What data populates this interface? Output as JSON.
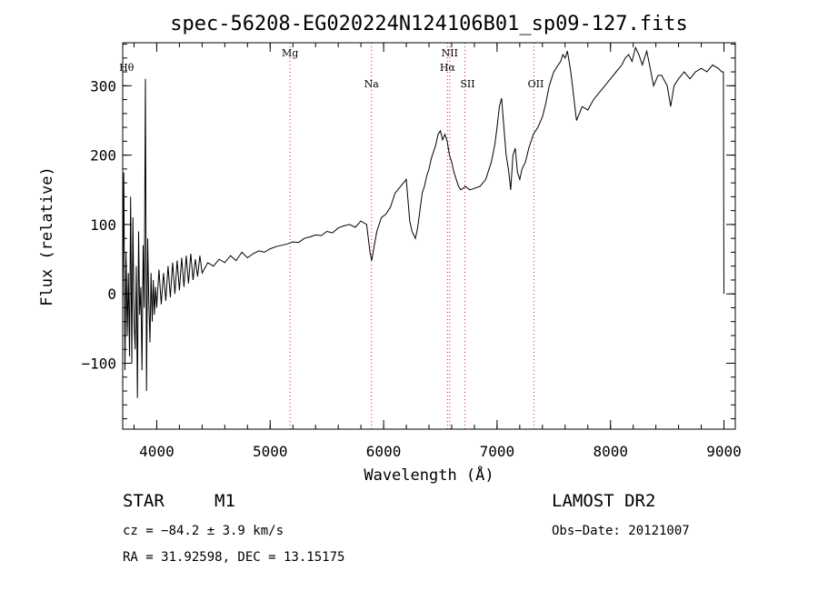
{
  "chart_data": {
    "type": "line",
    "title": "spec-56208-EG020224N124106B01_sp09-127.fits",
    "xlabel": "Wavelength (Å)",
    "ylabel": "Flux (relative)",
    "xlim": [
      3700,
      9100
    ],
    "ylim": [
      -195,
      362
    ],
    "xticks": [
      4000,
      5000,
      6000,
      7000,
      8000,
      9000
    ],
    "yticks": [
      -100,
      0,
      100,
      200,
      300
    ],
    "grid": false,
    "series": [
      {
        "x": [
          3700,
          3710,
          3720,
          3730,
          3740,
          3750,
          3760,
          3770,
          3780,
          3790,
          3800,
          3810,
          3820,
          3830,
          3840,
          3850,
          3860,
          3870,
          3880,
          3890,
          3900,
          3910,
          3920,
          3930,
          3940,
          3950,
          3960,
          3970,
          3980,
          3990,
          4000,
          4020,
          4040,
          4060,
          4080,
          4100,
          4120,
          4140,
          4160,
          4180,
          4200,
          4220,
          4240,
          4260,
          4280,
          4300,
          4320,
          4340,
          4360,
          4380,
          4400,
          4450,
          4500,
          4550,
          4600,
          4650,
          4700,
          4750,
          4800,
          4850,
          4900,
          4950,
          5000,
          5050,
          5100,
          5150,
          5200,
          5250,
          5300,
          5350,
          5400,
          5450,
          5500,
          5550,
          5600,
          5650,
          5700,
          5750,
          5800,
          5850,
          5880,
          5895,
          5910,
          5940,
          5980,
          6020,
          6060,
          6100,
          6150,
          6200,
          6230,
          6250,
          6280,
          6300,
          6320,
          6340,
          6360,
          6380,
          6400,
          6420,
          6440,
          6460,
          6480,
          6500,
          6520,
          6540,
          6560,
          6580,
          6600,
          6620,
          6640,
          6660,
          6680,
          6700,
          6720,
          6760,
          6800,
          6850,
          6900,
          6920,
          6950,
          6980,
          7000,
          7020,
          7040,
          7060,
          7080,
          7100,
          7120,
          7140,
          7160,
          7180,
          7200,
          7220,
          7250,
          7280,
          7320,
          7360,
          7400,
          7430,
          7460,
          7500,
          7540,
          7560,
          7580,
          7600,
          7620,
          7650,
          7700,
          7750,
          7800,
          7850,
          7900,
          7950,
          8000,
          8050,
          8100,
          8130,
          8160,
          8190,
          8220,
          8250,
          8280,
          8300,
          8320,
          8350,
          8380,
          8420,
          8450,
          8500,
          8530,
          8560,
          8600,
          8650,
          8700,
          8750,
          8800,
          8850,
          8900,
          8950,
          8980,
          8995,
          9000
        ],
        "y": [
          -20,
          175,
          -110,
          60,
          -60,
          30,
          -90,
          140,
          -100,
          110,
          -40,
          -80,
          40,
          -150,
          90,
          -30,
          10,
          -110,
          70,
          -20,
          310,
          -140,
          80,
          -10,
          -70,
          30,
          -40,
          20,
          -30,
          10,
          -20,
          35,
          -15,
          30,
          -10,
          40,
          -5,
          45,
          0,
          48,
          5,
          52,
          10,
          55,
          15,
          58,
          20,
          50,
          25,
          55,
          30,
          45,
          40,
          50,
          45,
          55,
          48,
          60,
          52,
          58,
          62,
          60,
          65,
          68,
          70,
          72,
          75,
          74,
          80,
          82,
          85,
          84,
          90,
          88,
          95,
          98,
          100,
          96,
          105,
          100,
          60,
          48,
          62,
          90,
          110,
          115,
          125,
          145,
          155,
          165,
          105,
          90,
          80,
          95,
          120,
          145,
          155,
          170,
          180,
          195,
          205,
          215,
          230,
          235,
          222,
          230,
          220,
          200,
          190,
          175,
          165,
          155,
          150,
          152,
          155,
          150,
          152,
          155,
          165,
          175,
          190,
          215,
          240,
          270,
          282,
          240,
          200,
          180,
          150,
          200,
          210,
          175,
          165,
          180,
          190,
          210,
          230,
          240,
          255,
          275,
          300,
          320,
          330,
          335,
          345,
          340,
          350,
          320,
          250,
          270,
          265,
          280,
          290,
          300,
          310,
          320,
          330,
          340,
          345,
          335,
          355,
          345,
          330,
          340,
          350,
          325,
          300,
          315,
          315,
          300,
          270,
          300,
          310,
          320,
          310,
          320,
          325,
          320,
          330,
          325,
          320,
          320,
          0
        ]
      }
    ],
    "annotations": [
      {
        "text": "Hθ",
        "x": 3750
      },
      {
        "text": "Mg",
        "x": 5175
      },
      {
        "text": "Na",
        "x": 5893
      },
      {
        "text": "NII",
        "x": 6583
      },
      {
        "text": "Hα",
        "x": 6563
      },
      {
        "text": "SII",
        "x": 6716
      },
      {
        "text": "OII",
        "x": 7325
      }
    ]
  },
  "info": {
    "object_class": "STAR",
    "subclass": "M1",
    "survey": "LAMOST DR2",
    "cz": "cz = −84.2 ± 3.9 km/s",
    "obs_date": "Obs−Date: 20121007",
    "coords": "RA =  31.92598, DEC =  13.15175"
  }
}
